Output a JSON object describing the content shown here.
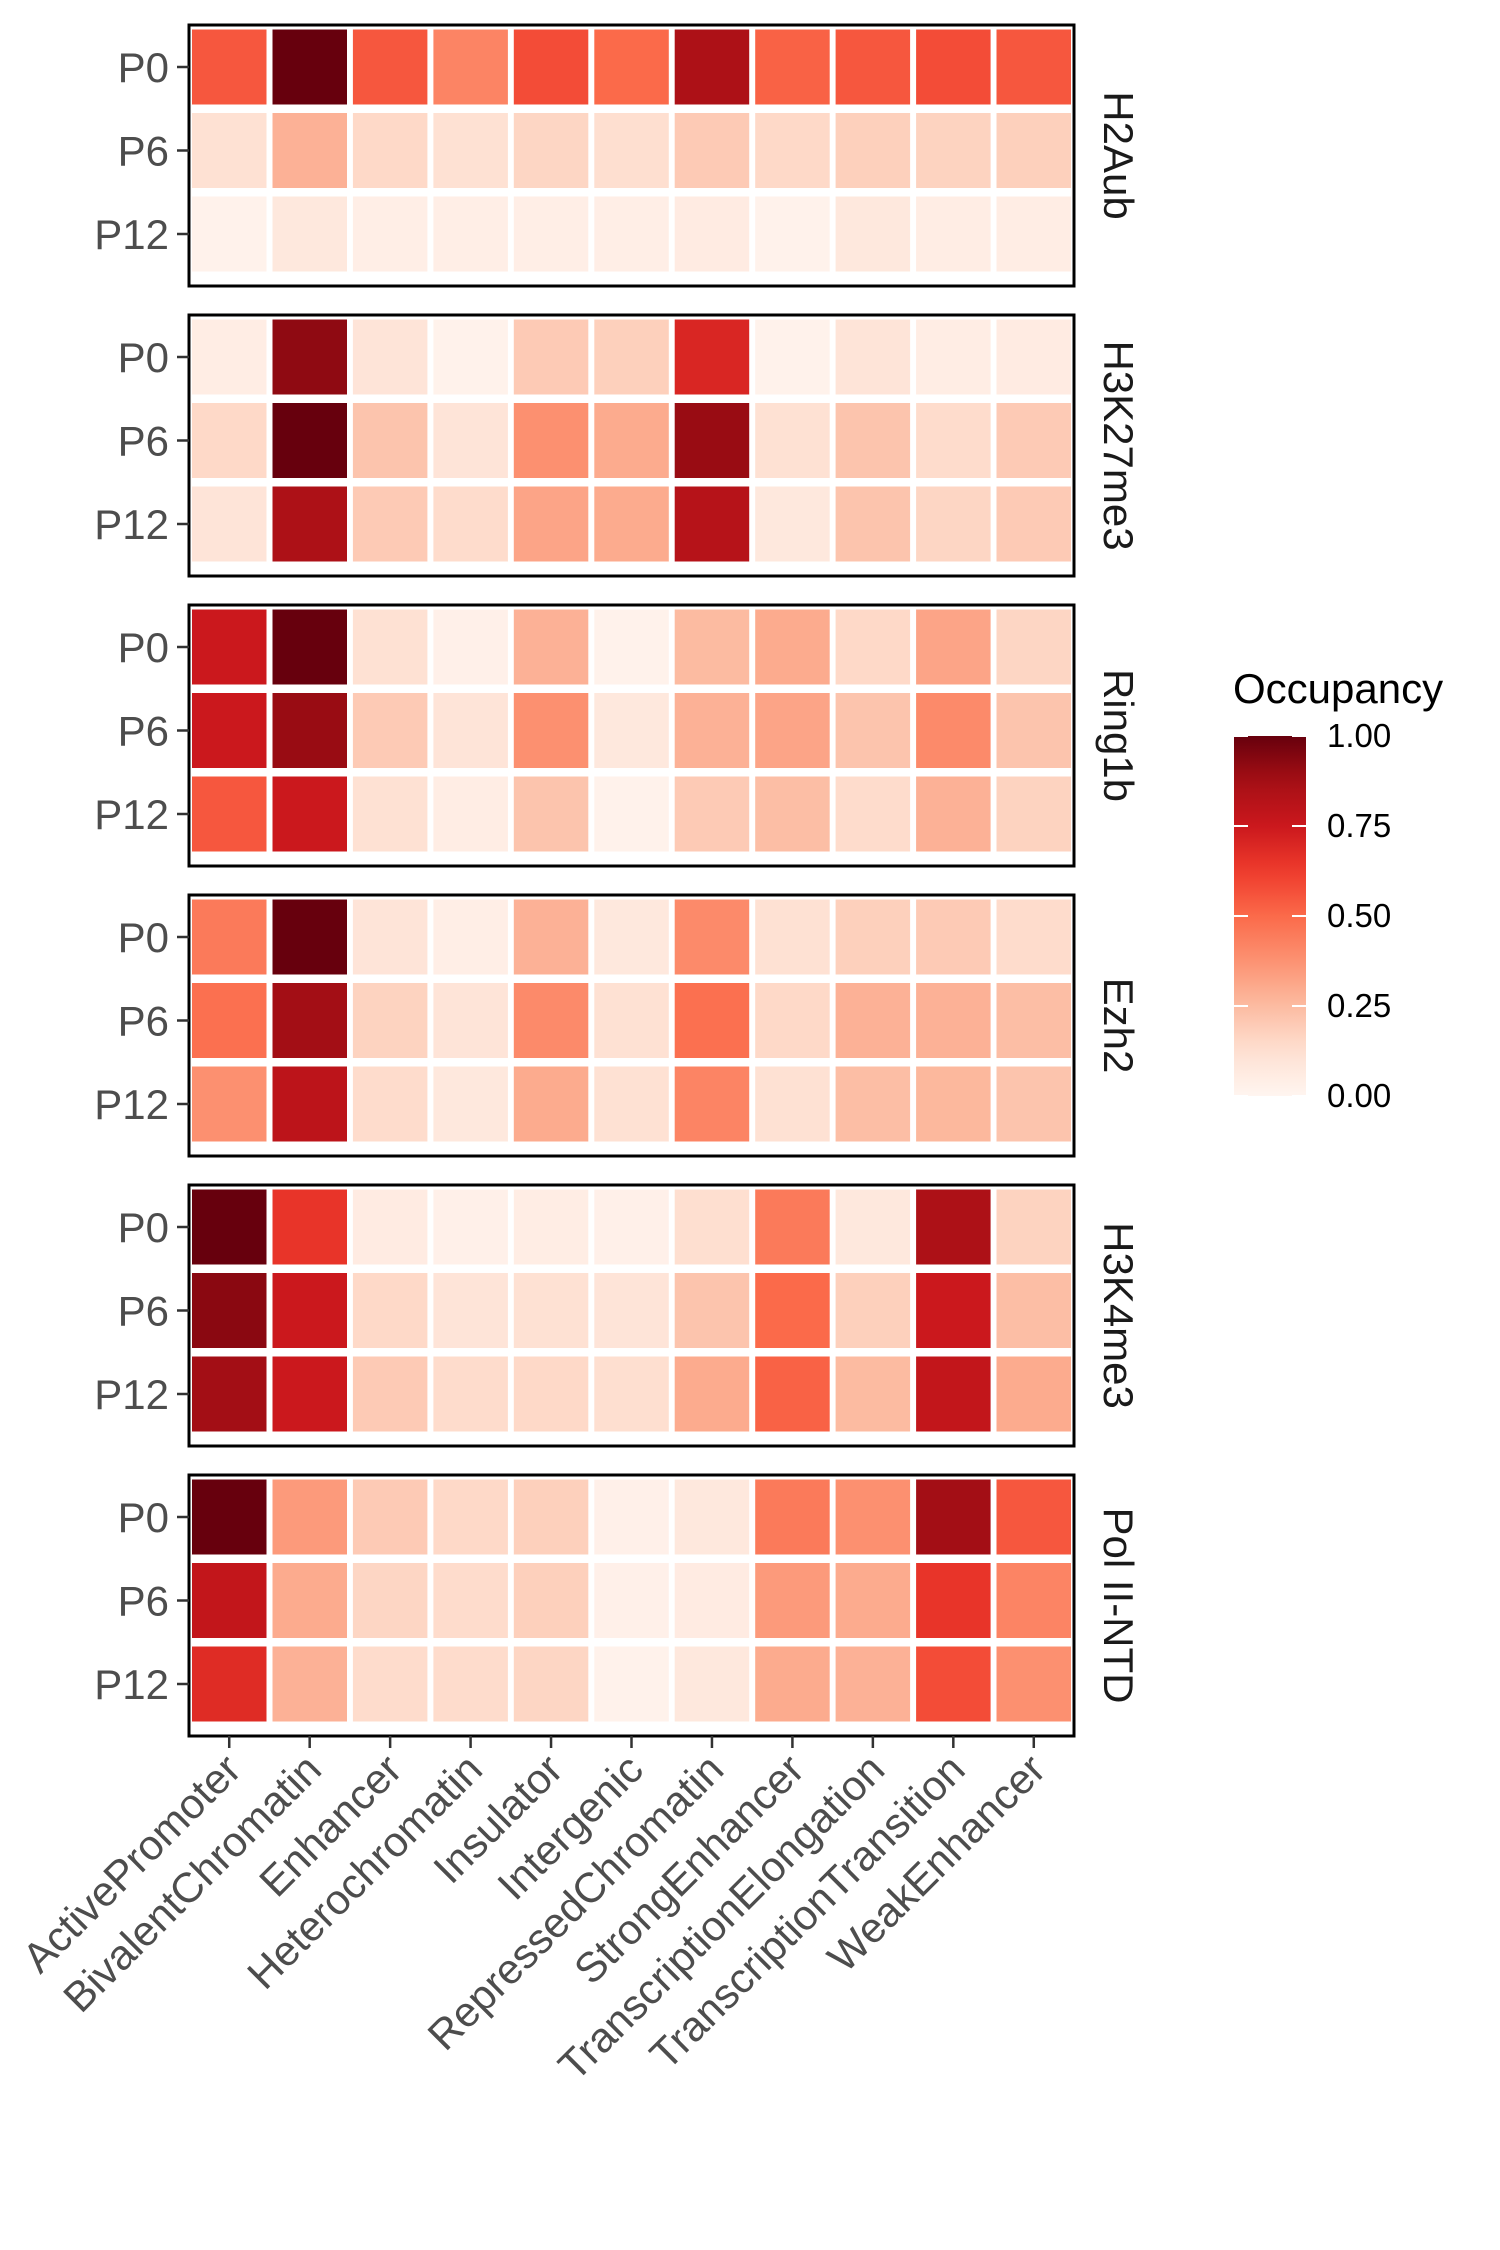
{
  "chart_data": {
    "type": "heatmap",
    "categories": [
      "ActivePromoter",
      "BivalentChromatin",
      "Enhancer",
      "Heterochromatin",
      "Insulator",
      "Intergenic",
      "RepressedChromatin",
      "StrongEnhancer",
      "TranscriptionElongation",
      "TranscriptionTransition",
      "WeakEnhancer"
    ],
    "rows": [
      "P0",
      "P6",
      "P12"
    ],
    "facets": [
      {
        "name": "H2Aub",
        "values": [
          [
            0.55,
            1.0,
            0.55,
            0.42,
            0.58,
            0.5,
            0.85,
            0.52,
            0.55,
            0.58,
            0.55
          ],
          [
            0.12,
            0.28,
            0.15,
            0.12,
            0.16,
            0.13,
            0.2,
            0.15,
            0.18,
            0.17,
            0.18
          ],
          [
            0.02,
            0.08,
            0.04,
            0.04,
            0.04,
            0.04,
            0.06,
            0.02,
            0.08,
            0.05,
            0.05
          ]
        ]
      },
      {
        "name": "H3K27me3",
        "values": [
          [
            0.05,
            0.92,
            0.1,
            0.02,
            0.2,
            0.18,
            0.7,
            0.02,
            0.1,
            0.05,
            0.06
          ],
          [
            0.15,
            1.0,
            0.22,
            0.1,
            0.38,
            0.3,
            0.9,
            0.12,
            0.22,
            0.14,
            0.2
          ],
          [
            0.1,
            0.85,
            0.2,
            0.14,
            0.32,
            0.3,
            0.82,
            0.08,
            0.22,
            0.16,
            0.2
          ]
        ]
      },
      {
        "name": "Ring1b",
        "values": [
          [
            0.75,
            1.0,
            0.12,
            0.03,
            0.28,
            0.02,
            0.25,
            0.3,
            0.15,
            0.32,
            0.16
          ],
          [
            0.75,
            0.9,
            0.2,
            0.1,
            0.38,
            0.08,
            0.28,
            0.32,
            0.22,
            0.4,
            0.22
          ],
          [
            0.55,
            0.75,
            0.12,
            0.05,
            0.22,
            0.02,
            0.2,
            0.24,
            0.14,
            0.28,
            0.17
          ]
        ]
      },
      {
        "name": "Ezh2",
        "values": [
          [
            0.45,
            1.0,
            0.1,
            0.04,
            0.28,
            0.08,
            0.4,
            0.12,
            0.18,
            0.2,
            0.14
          ],
          [
            0.48,
            0.88,
            0.17,
            0.1,
            0.4,
            0.12,
            0.48,
            0.15,
            0.28,
            0.28,
            0.24
          ],
          [
            0.38,
            0.8,
            0.14,
            0.08,
            0.3,
            0.12,
            0.42,
            0.12,
            0.24,
            0.26,
            0.22
          ]
        ]
      },
      {
        "name": "H3K4me3",
        "values": [
          [
            1.0,
            0.65,
            0.06,
            0.03,
            0.05,
            0.03,
            0.13,
            0.45,
            0.08,
            0.85,
            0.17
          ],
          [
            0.93,
            0.75,
            0.15,
            0.1,
            0.12,
            0.1,
            0.22,
            0.5,
            0.18,
            0.75,
            0.24
          ],
          [
            0.88,
            0.75,
            0.2,
            0.14,
            0.15,
            0.13,
            0.3,
            0.52,
            0.25,
            0.78,
            0.3
          ]
        ]
      },
      {
        "name": "Pol II-NTD",
        "values": [
          [
            1.0,
            0.35,
            0.2,
            0.15,
            0.18,
            0.03,
            0.08,
            0.45,
            0.38,
            0.88,
            0.55
          ],
          [
            0.78,
            0.3,
            0.16,
            0.14,
            0.18,
            0.03,
            0.06,
            0.35,
            0.3,
            0.65,
            0.42
          ],
          [
            0.68,
            0.28,
            0.14,
            0.14,
            0.16,
            0.02,
            0.08,
            0.3,
            0.28,
            0.58,
            0.38
          ]
        ]
      }
    ],
    "legend": {
      "title": "Occupancy",
      "breaks": [
        "1.00",
        "0.75",
        "0.50",
        "0.25",
        "0.00"
      ],
      "limits": [
        0,
        1
      ],
      "placement": "right"
    },
    "colormap": [
      "#fff5f0",
      "#fee0d2",
      "#fcbba1",
      "#fc9272",
      "#fb6a4a",
      "#ef3b2c",
      "#cb181d",
      "#a50f15",
      "#67000d"
    ],
    "grid": false
  }
}
